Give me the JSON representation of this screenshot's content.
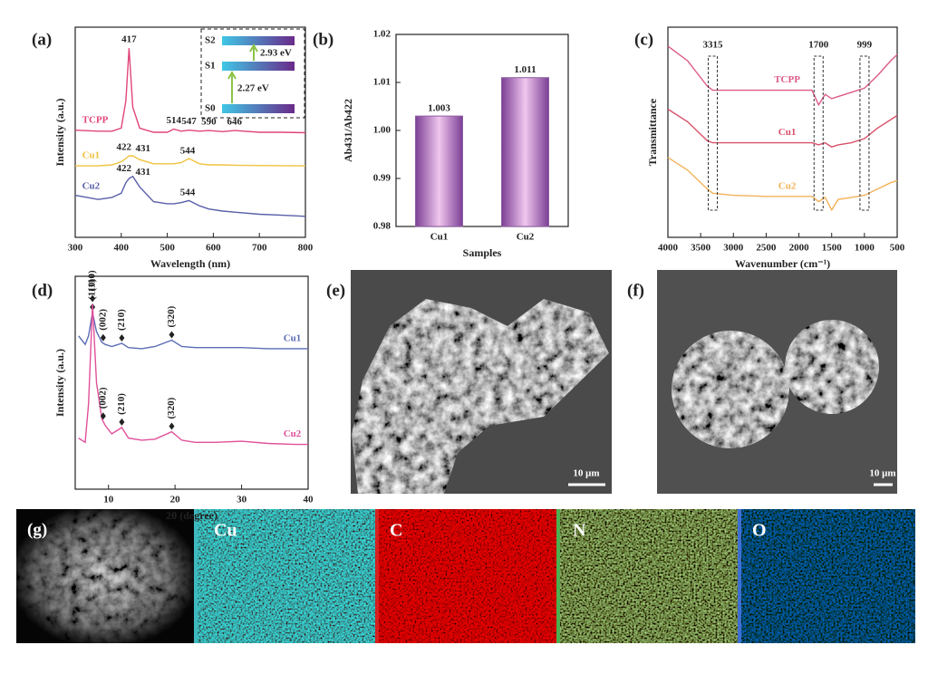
{
  "chart_data": [
    {
      "type": "line",
      "panel": "(a)",
      "xlabel": "Wavelength (nm)",
      "ylabel": "Intensity (a.u.)",
      "xlim": [
        300,
        800
      ],
      "xticks": [
        300,
        400,
        500,
        600,
        700,
        800
      ],
      "ylim": [
        0,
        100
      ],
      "x": [
        300,
        350,
        380,
        400,
        410,
        417,
        425,
        440,
        470,
        500,
        514,
        530,
        547,
        570,
        590,
        620,
        646,
        700,
        750,
        800
      ],
      "series": [
        {
          "name": "TCPP",
          "color": "#e0457b",
          "values": [
            51,
            50.5,
            50.5,
            52,
            65,
            90,
            62,
            52,
            50,
            50,
            51.5,
            50.5,
            51,
            50.5,
            50.8,
            50.3,
            50.8,
            50,
            50,
            49.8
          ],
          "peaks": [
            417,
            514,
            547,
            590,
            646
          ]
        },
        {
          "name": "Cu1",
          "color": "#efc23e",
          "values": [
            34,
            34,
            34.5,
            36,
            37.5,
            38.8,
            38.8,
            37,
            35,
            35,
            35,
            35.5,
            37.5,
            35,
            34.5,
            34.5,
            34.3,
            34.2,
            34.1,
            34
          ],
          "peaks": [
            422,
            431,
            544
          ]
        },
        {
          "name": "Cu2",
          "color": "#5a5fa8",
          "values": [
            20,
            18,
            19,
            21,
            26,
            28,
            29,
            24,
            17,
            16,
            16,
            16.5,
            17.5,
            15,
            13.5,
            12.5,
            12,
            11,
            10.5,
            10
          ],
          "peaks": [
            422,
            431,
            544
          ]
        }
      ],
      "inset": {
        "levels": [
          "S2",
          "S1",
          "S0"
        ],
        "transitions": [
          "2.93 eV",
          "2.27 eV"
        ]
      }
    },
    {
      "type": "bar",
      "panel": "(b)",
      "xlabel": "Samples",
      "ylabel": "Ab431/Ab422",
      "categories": [
        "Cu1",
        "Cu2"
      ],
      "values": [
        1.003,
        1.011
      ],
      "color": "#8e5ea2",
      "ylim": [
        0.98,
        1.02
      ],
      "yticks": [
        0.98,
        0.99,
        {
          "value": 1.0,
          "label": "1.00"
        },
        1.01,
        1.02
      ]
    },
    {
      "type": "line",
      "panel": "(c)",
      "xlabel": "Wavenumber (cm⁻¹)",
      "ylabel": "Transmittance",
      "xlim": [
        4000,
        500
      ],
      "xticks": [
        4000,
        3500,
        3000,
        2500,
        2000,
        1500,
        1000,
        500
      ],
      "ylim": [
        0,
        100
      ],
      "x": [
        4000,
        3700,
        3400,
        3315,
        3000,
        2500,
        2000,
        1800,
        1700,
        1600,
        1500,
        1400,
        1200,
        999,
        800,
        600,
        500
      ],
      "series": [
        {
          "name": "TCPP",
          "color": "#dd5a8a",
          "values": [
            91,
            84,
            72,
            70,
            70,
            70,
            70,
            70,
            63,
            68,
            66,
            67,
            69,
            71,
            77,
            84,
            87
          ]
        },
        {
          "name": "Cu1",
          "color": "#d9506a",
          "values": [
            61,
            55,
            46,
            45,
            45,
            45,
            45,
            45,
            44,
            45,
            43,
            44,
            45,
            47,
            52,
            56,
            58
          ]
        },
        {
          "name": "Cu2",
          "color": "#f2b25a",
          "values": [
            38,
            32,
            23,
            21,
            20,
            19.5,
            19.5,
            19.5,
            17,
            19,
            13,
            18,
            19,
            20,
            23,
            26,
            27
          ]
        }
      ],
      "bands": [
        3315,
        1700,
        999
      ]
    },
    {
      "type": "line",
      "panel": "(d)",
      "xlabel": "2θ (degree)",
      "ylabel": "Intensity (a.u.)",
      "xlim": [
        5,
        40
      ],
      "xticks": [
        10,
        20,
        30,
        40
      ],
      "ylim": [
        0,
        100
      ],
      "x": [
        5.5,
        6.5,
        7,
        7.6,
        8.2,
        9,
        9.5,
        10.5,
        12,
        13,
        15,
        17,
        19.5,
        21,
        23,
        26,
        30,
        34,
        38,
        40
      ],
      "series": [
        {
          "name": "Cu1",
          "color": "#5a6db5",
          "values": [
            72,
            68,
            72,
            83,
            74,
            69,
            68,
            67,
            68.5,
            66.5,
            66,
            67,
            70,
            67,
            66.5,
            66.5,
            66.5,
            66,
            66,
            66
          ],
          "peaks": [
            {
              "x": 7.6,
              "text": "(110)"
            },
            {
              "x": 9.2,
              "text": "(002)"
            },
            {
              "x": 12,
              "text": "(210)"
            },
            {
              "x": 19.5,
              "text": "(320)"
            }
          ]
        },
        {
          "name": "Cu2",
          "color": "#e0509a",
          "values": [
            24,
            22,
            40,
            87,
            50,
            33,
            30,
            26,
            29,
            24,
            23,
            23.5,
            27,
            23,
            22,
            22,
            22.5,
            21.5,
            21,
            21
          ],
          "peaks": [
            {
              "x": 7.6,
              "text": "(110)"
            },
            {
              "x": 9.2,
              "text": "(002)"
            },
            {
              "x": 12,
              "text": "(210)"
            },
            {
              "x": 19.5,
              "text": "(320)"
            }
          ]
        }
      ]
    }
  ],
  "images": {
    "e": {
      "panel": "(e)",
      "scale_bar": "10 μm"
    },
    "f": {
      "panel": "(f)",
      "scale_bar": "10 μm"
    },
    "g": {
      "panel": "(g)",
      "labels": [
        "Cu",
        "C",
        "N",
        "O"
      ]
    }
  }
}
